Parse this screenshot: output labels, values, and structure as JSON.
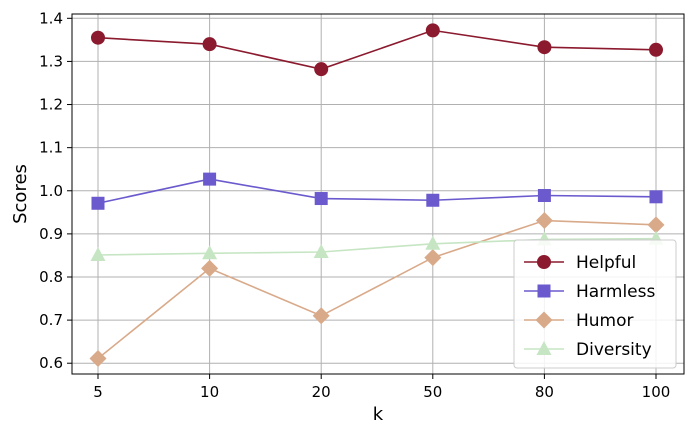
{
  "chart_data": {
    "type": "line",
    "title": "",
    "xlabel": "k",
    "ylabel": "Scores",
    "categories": [
      "5",
      "10",
      "20",
      "50",
      "80",
      "100"
    ],
    "ylim": [
      0.575,
      1.41
    ],
    "yticks": [
      "0.6",
      "0.7",
      "0.8",
      "0.9",
      "1.0",
      "1.1",
      "1.2",
      "1.3",
      "1.4"
    ],
    "grid": true,
    "legend_position": "lower-right",
    "series": [
      {
        "name": "Helpful",
        "color": "#8b1a2e",
        "marker": "circle",
        "values": [
          1.355,
          1.34,
          1.282,
          1.372,
          1.333,
          1.327
        ]
      },
      {
        "name": "Harmless",
        "color": "#6a5acd",
        "marker": "square",
        "values": [
          0.971,
          1.027,
          0.982,
          0.978,
          0.989,
          0.986
        ]
      },
      {
        "name": "Humor",
        "color": "#d9aa8a",
        "marker": "diamond",
        "values": [
          0.611,
          0.82,
          0.71,
          0.845,
          0.931,
          0.921
        ]
      },
      {
        "name": "Diversity",
        "color": "#c6e5c3",
        "marker": "triangle",
        "values": [
          0.851,
          0.855,
          0.858,
          0.877,
          0.887,
          0.889
        ]
      }
    ]
  }
}
